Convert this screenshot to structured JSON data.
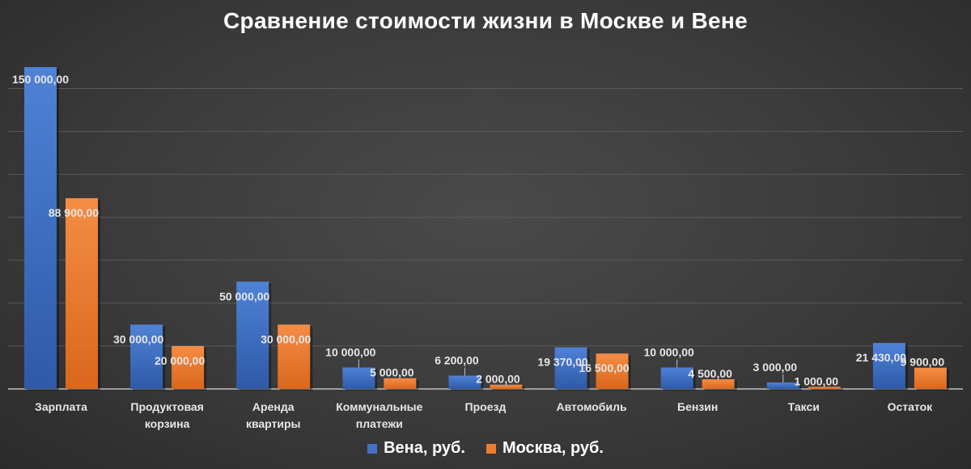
{
  "chart_data": {
    "type": "bar",
    "title": "Сравнение стоимости жизни в Москве и Вене",
    "xlabel": "",
    "ylabel": "",
    "grid": true,
    "legend_position": "bottom",
    "categories": [
      "Зарплата",
      "Продуктовая корзина",
      "Аренда квартиры",
      "Коммунальные платежи",
      "Проезд",
      "Автомобиль",
      "Бензин",
      "Такси",
      "Остаток"
    ],
    "series": [
      {
        "name": "Вена, руб.",
        "color": "#4472c4",
        "values": [
          150000,
          30000,
          50000,
          10000,
          6200,
          19370,
          10000,
          3000,
          21430
        ],
        "value_labels": [
          "150 000,00",
          "30 000,00",
          "50 000,00",
          "10 000,00",
          "6 200,00",
          "19 370,00",
          "10 000,00",
          "3 000,00",
          "21 430,00"
        ]
      },
      {
        "name": "Москва, руб.",
        "color": "#ed7d31",
        "values": [
          88900,
          20000,
          30000,
          5000,
          2000,
          16500,
          4500,
          1000,
          9900
        ],
        "value_labels": [
          "88 900,00",
          "20 000,00",
          "30 000,00",
          "5 000,00",
          "2 000,00",
          "16 500,00",
          "4 500,00",
          "1 000,00",
          "9 900,00"
        ]
      }
    ],
    "ylim": [
      0,
      160000
    ]
  }
}
